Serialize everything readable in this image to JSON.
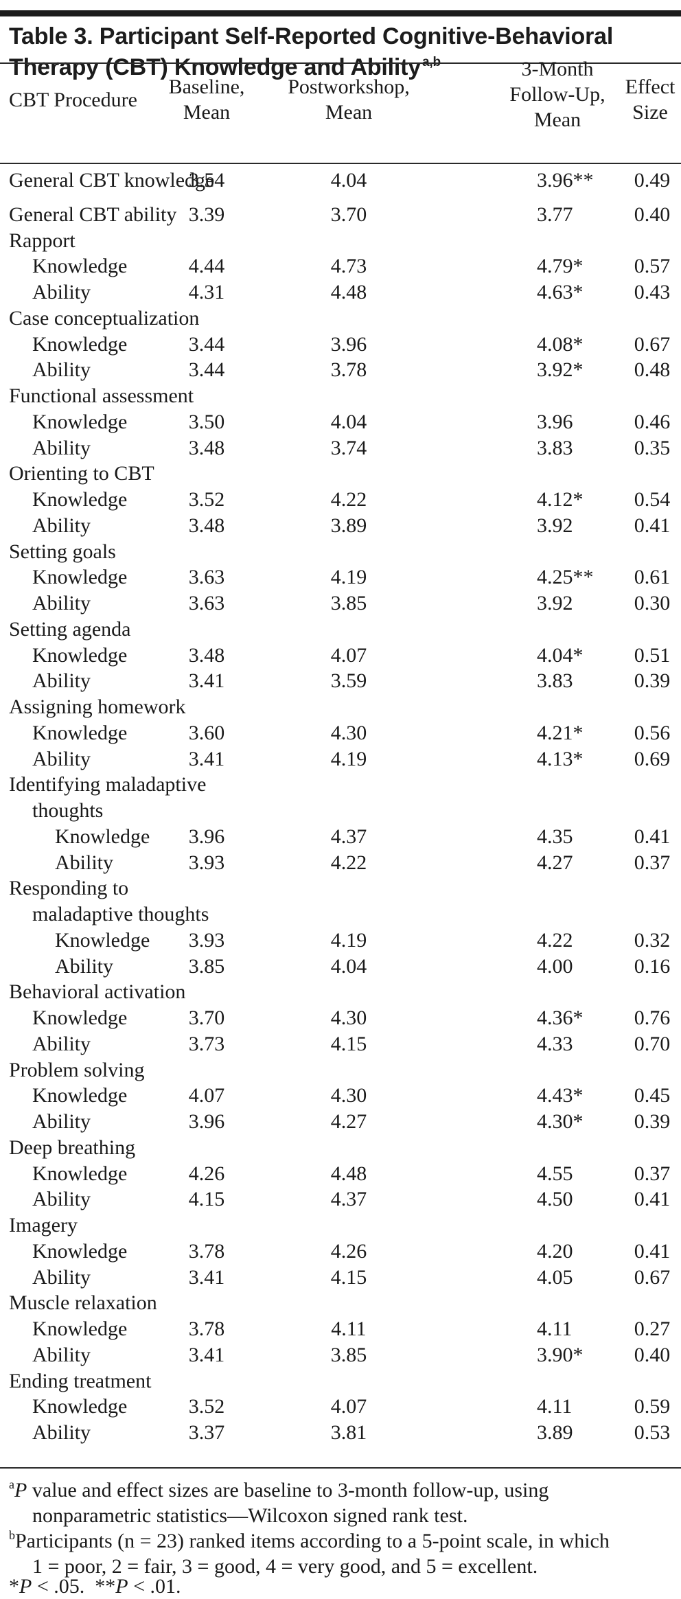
{
  "title": {
    "text": "Table 3. Participant Self-Reported Cognitive-Behavioral Therapy (CBT) Knowledge and Ability",
    "sup": "a,b"
  },
  "headers": {
    "procedure": "CBT Procedure",
    "baseline": [
      "Baseline,",
      "Mean"
    ],
    "post": [
      "Postworkshop,",
      "Mean"
    ],
    "follow": [
      "3-Month",
      "Follow-Up,",
      "Mean"
    ],
    "effect": [
      "Effect",
      "Size"
    ]
  },
  "rows": [
    {
      "label": "General CBT knowledge",
      "level": 0,
      "b": "3.54",
      "p": "4.04",
      "f": "3.96**",
      "e": "0.49"
    },
    {
      "label": "General CBT ability",
      "level": 0,
      "b": "3.39",
      "p": "3.70",
      "f": "3.77",
      "e": "0.40"
    },
    {
      "label": "Rapport",
      "level": 0
    },
    {
      "label": "Knowledge",
      "level": 1,
      "b": "4.44",
      "p": "4.73",
      "f": "4.79*",
      "e": "0.57"
    },
    {
      "label": "Ability",
      "level": 1,
      "b": "4.31",
      "p": "4.48",
      "f": "4.63*",
      "e": "0.43"
    },
    {
      "label": "Case conceptualization",
      "level": 0
    },
    {
      "label": "Knowledge",
      "level": 1,
      "b": "3.44",
      "p": "3.96",
      "f": "4.08*",
      "e": "0.67"
    },
    {
      "label": "Ability",
      "level": 1,
      "b": "3.44",
      "p": "3.78",
      "f": "3.92*",
      "e": "0.48"
    },
    {
      "label": "Functional assessment",
      "level": 0
    },
    {
      "label": "Knowledge",
      "level": 1,
      "b": "3.50",
      "p": "4.04",
      "f": "3.96",
      "e": "0.46"
    },
    {
      "label": "Ability",
      "level": 1,
      "b": "3.48",
      "p": "3.74",
      "f": "3.83",
      "e": "0.35"
    },
    {
      "label": "Orienting to CBT",
      "level": 0
    },
    {
      "label": "Knowledge",
      "level": 1,
      "b": "3.52",
      "p": "4.22",
      "f": "4.12*",
      "e": "0.54"
    },
    {
      "label": "Ability",
      "level": 1,
      "b": "3.48",
      "p": "3.89",
      "f": "3.92",
      "e": "0.41"
    },
    {
      "label": "Setting goals",
      "level": 0
    },
    {
      "label": "Knowledge",
      "level": 1,
      "b": "3.63",
      "p": "4.19",
      "f": "4.25**",
      "e": "0.61"
    },
    {
      "label": "Ability",
      "level": 1,
      "b": "3.63",
      "p": "3.85",
      "f": "3.92",
      "e": "0.30"
    },
    {
      "label": "Setting agenda",
      "level": 0
    },
    {
      "label": "Knowledge",
      "level": 1,
      "b": "3.48",
      "p": "4.07",
      "f": "4.04*",
      "e": "0.51"
    },
    {
      "label": "Ability",
      "level": 1,
      "b": "3.41",
      "p": "3.59",
      "f": "3.83",
      "e": "0.39"
    },
    {
      "label": "Assigning homework",
      "level": 0
    },
    {
      "label": "Knowledge",
      "level": 1,
      "b": "3.60",
      "p": "4.30",
      "f": "4.21*",
      "e": "0.56"
    },
    {
      "label": "Ability",
      "level": 1,
      "b": "3.41",
      "p": "4.19",
      "f": "4.13*",
      "e": "0.69"
    },
    {
      "label": "Identifying maladaptive",
      "level": 0
    },
    {
      "label": "thoughts",
      "level": 1
    },
    {
      "label": "Knowledge",
      "level": 2,
      "b": "3.96",
      "p": "4.37",
      "f": "4.35",
      "e": "0.41"
    },
    {
      "label": "Ability",
      "level": 2,
      "b": "3.93",
      "p": "4.22",
      "f": "4.27",
      "e": "0.37"
    },
    {
      "label": "Responding to",
      "level": 0
    },
    {
      "label": "maladaptive thoughts",
      "level": 1
    },
    {
      "label": "Knowledge",
      "level": 2,
      "b": "3.93",
      "p": "4.19",
      "f": "4.22",
      "e": "0.32"
    },
    {
      "label": "Ability",
      "level": 2,
      "b": "3.85",
      "p": "4.04",
      "f": "4.00",
      "e": "0.16"
    },
    {
      "label": "Behavioral activation",
      "level": 0
    },
    {
      "label": "Knowledge",
      "level": 1,
      "b": "3.70",
      "p": "4.30",
      "f": "4.36*",
      "e": "0.76"
    },
    {
      "label": "Ability",
      "level": 1,
      "b": "3.73",
      "p": "4.15",
      "f": "4.33",
      "e": "0.70"
    },
    {
      "label": "Problem solving",
      "level": 0
    },
    {
      "label": "Knowledge",
      "level": 1,
      "b": "4.07",
      "p": "4.30",
      "f": "4.43*",
      "e": "0.45"
    },
    {
      "label": "Ability",
      "level": 1,
      "b": "3.96",
      "p": "4.27",
      "f": "4.30*",
      "e": "0.39"
    },
    {
      "label": "Deep breathing",
      "level": 0
    },
    {
      "label": "Knowledge",
      "level": 1,
      "b": "4.26",
      "p": "4.48",
      "f": "4.55",
      "e": "0.37"
    },
    {
      "label": "Ability",
      "level": 1,
      "b": "4.15",
      "p": "4.37",
      "f": "4.50",
      "e": "0.41"
    },
    {
      "label": "Imagery",
      "level": 0
    },
    {
      "label": "Knowledge",
      "level": 1,
      "b": "3.78",
      "p": "4.26",
      "f": "4.20",
      "e": "0.41"
    },
    {
      "label": "Ability",
      "level": 1,
      "b": "3.41",
      "p": "4.15",
      "f": "4.05",
      "e": "0.67"
    },
    {
      "label": "Muscle relaxation",
      "level": 0
    },
    {
      "label": "Knowledge",
      "level": 1,
      "b": "3.78",
      "p": "4.11",
      "f": "4.11",
      "e": "0.27"
    },
    {
      "label": "Ability",
      "level": 1,
      "b": "3.41",
      "p": "3.85",
      "f": "3.90*",
      "e": "0.40"
    },
    {
      "label": "Ending treatment",
      "level": 0
    },
    {
      "label": "Knowledge",
      "level": 1,
      "b": "3.52",
      "p": "4.07",
      "f": "4.11",
      "e": "0.59"
    },
    {
      "label": "Ability",
      "level": 1,
      "b": "3.37",
      "p": "3.81",
      "f": "3.89",
      "e": "0.53"
    }
  ],
  "footnotes": {
    "a": {
      "sup": "a",
      "italic": "P",
      "line1": " value and effect sizes are baseline to 3-month follow-up, using",
      "line2": "nonparametric statistics—Wilcoxon signed rank test."
    },
    "b": {
      "sup": "b",
      "line1": "Participants (n = 23) ranked items according to a 5-point scale, in which",
      "line2": "1 = poor, 2 = fair, 3 = good, 4 = very good, and 5 = excellent."
    },
    "sig": {
      "star1": "*",
      "p1": "P",
      "text1": " < .05.  ",
      "star2": "**",
      "p2": "P",
      "text2": " < .01."
    }
  }
}
